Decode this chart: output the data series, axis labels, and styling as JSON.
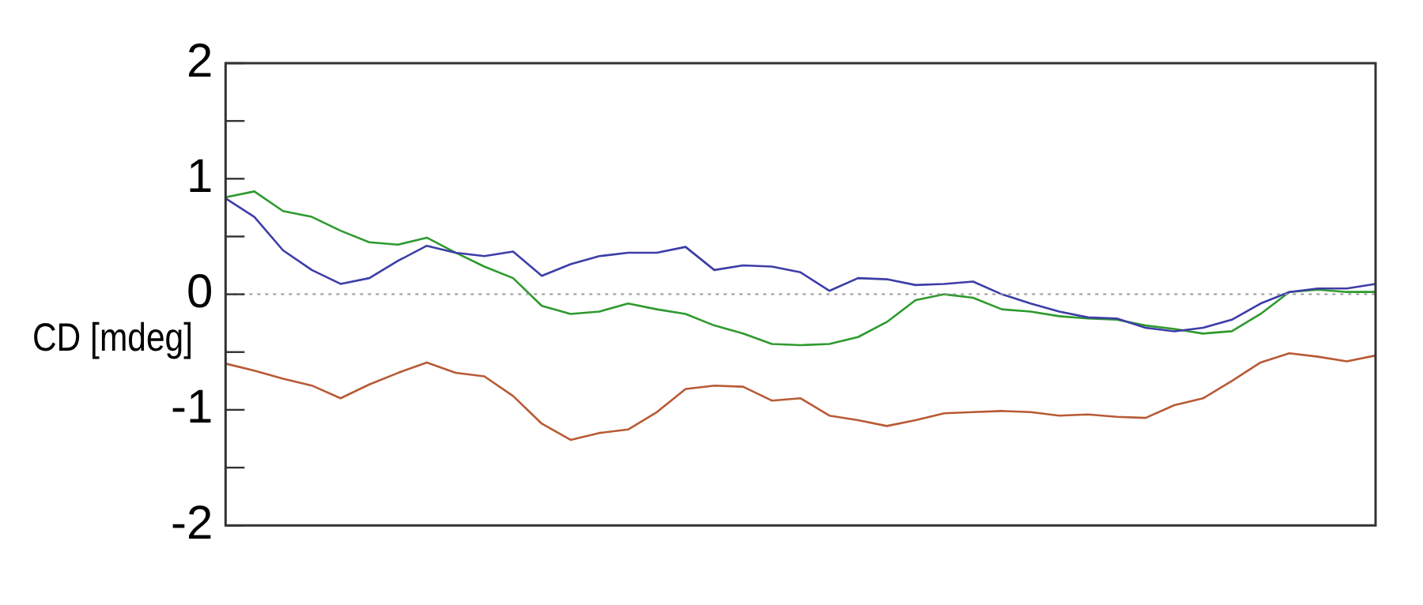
{
  "chart_data": {
    "type": "line",
    "ylabel": "CD [mdeg]",
    "categories": [
      null,
      null,
      null,
      null,
      null,
      null,
      null,
      null,
      null,
      null,
      null,
      null,
      null,
      null,
      null,
      null,
      null,
      null,
      null,
      null,
      null,
      null,
      null,
      null,
      null,
      null,
      null,
      null,
      null,
      null,
      null,
      null,
      null,
      null,
      null,
      null,
      null,
      null,
      null,
      null,
      null
    ],
    "series": [
      {
        "color": "#3d3da8",
        "values": [
          0.83,
          0.67,
          0.38,
          0.21,
          0.09,
          0.14,
          0.29,
          0.42,
          0.36,
          0.33,
          0.37,
          0.16,
          0.26,
          0.33,
          0.36,
          0.36,
          0.41,
          0.21,
          0.25,
          0.24,
          0.19,
          0.03,
          0.14,
          0.13,
          0.08,
          0.09,
          0.11,
          0.0,
          -0.08,
          -0.15,
          -0.2,
          -0.21,
          -0.29,
          -0.32,
          -0.29,
          -0.22,
          -0.08,
          0.02,
          0.05,
          0.05,
          0.09
        ]
      },
      {
        "color": "#2e9a2e",
        "values": [
          0.84,
          0.89,
          0.72,
          0.67,
          0.55,
          0.45,
          0.43,
          0.49,
          0.36,
          0.24,
          0.14,
          -0.1,
          -0.17,
          -0.15,
          -0.08,
          -0.13,
          -0.17,
          -0.27,
          -0.34,
          -0.43,
          -0.44,
          -0.43,
          -0.37,
          -0.24,
          -0.05,
          0.0,
          -0.03,
          -0.13,
          -0.15,
          -0.19,
          -0.21,
          -0.22,
          -0.27,
          -0.3,
          -0.34,
          -0.32,
          -0.17,
          0.02,
          0.04,
          0.02,
          0.02
        ]
      },
      {
        "color": "#b85a35",
        "values": [
          -0.6,
          -0.66,
          -0.73,
          -0.79,
          -0.9,
          -0.78,
          -0.68,
          -0.59,
          -0.68,
          -0.71,
          -0.88,
          -1.12,
          -1.26,
          -1.2,
          -1.17,
          -1.02,
          -0.82,
          -0.79,
          -0.8,
          -0.92,
          -0.9,
          -1.05,
          -1.09,
          -1.14,
          -1.09,
          -1.03,
          -1.02,
          -1.01,
          -1.02,
          -1.05,
          -1.04,
          -1.06,
          -1.07,
          -0.96,
          -0.9,
          -0.75,
          -0.59,
          -0.51,
          -0.54,
          -0.58,
          -0.53
        ]
      }
    ],
    "ylim": [
      -2,
      2
    ],
    "yticks": [
      -2,
      {
        "value": -1.5,
        "label": null
      },
      -1,
      {
        "value": -0.5,
        "label": null
      },
      0,
      {
        "value": 0.5,
        "label": null
      },
      1,
      {
        "value": 1.5,
        "label": null
      },
      2
    ],
    "grid": false,
    "legend": false,
    "marker": "none",
    "line_style": "solid",
    "ref_lines": [
      {
        "axis": "y",
        "value": 0,
        "color": "#999999",
        "line_style": "dotted"
      }
    ]
  }
}
